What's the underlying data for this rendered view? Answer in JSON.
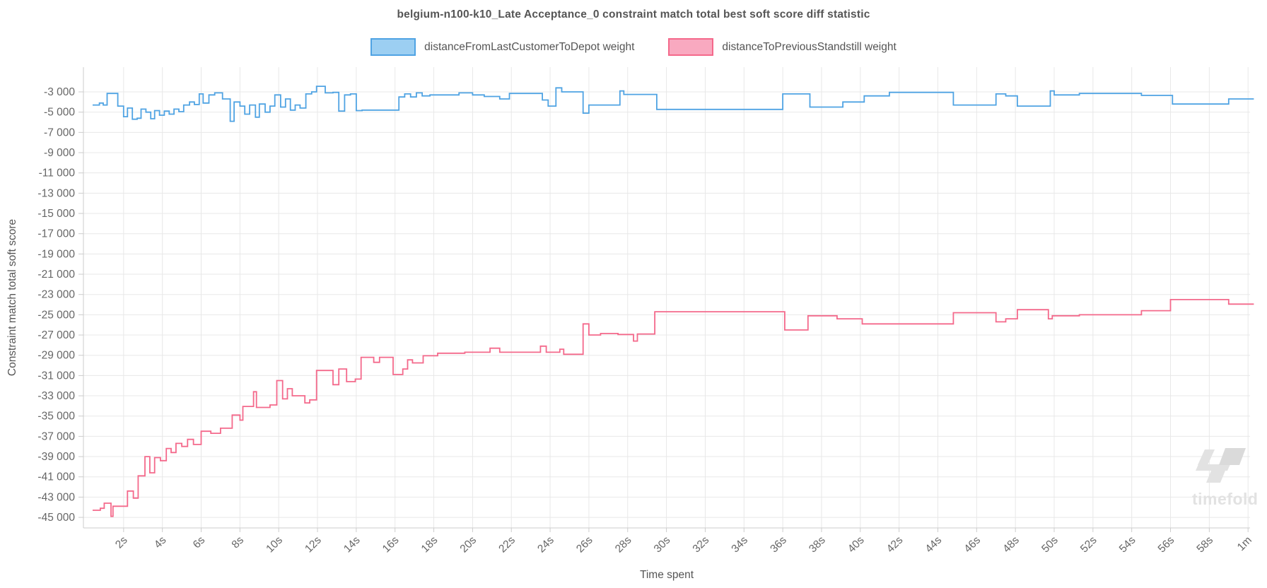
{
  "watermark": {
    "text": "timefold"
  },
  "colors": {
    "grid": "#e8e8e8",
    "axis": "#cccccc",
    "tick_text": "#666666",
    "title_text": "#555555",
    "watermark": "#e2e2e2",
    "watermark_dark": "#dadada"
  },
  "chart_data": {
    "type": "step-line",
    "title": "belgium-n100-k10_Late Acceptance_0 constraint match total best soft score diff statistic",
    "xlabel": "Time spent",
    "ylabel": "Constraint match total soft score",
    "x_unit": "seconds",
    "x_range": [
      0,
      60.5
    ],
    "y_range": [
      -46000,
      -1800
    ],
    "grid": true,
    "legend_position": "top-center",
    "x_ticks": [
      {
        "sec": 2,
        "label": "2s"
      },
      {
        "sec": 4,
        "label": "4s"
      },
      {
        "sec": 6,
        "label": "6s"
      },
      {
        "sec": 8,
        "label": "8s"
      },
      {
        "sec": 10,
        "label": "10s"
      },
      {
        "sec": 12,
        "label": "12s"
      },
      {
        "sec": 14,
        "label": "14s"
      },
      {
        "sec": 16,
        "label": "16s"
      },
      {
        "sec": 18,
        "label": "18s"
      },
      {
        "sec": 20,
        "label": "20s"
      },
      {
        "sec": 22,
        "label": "22s"
      },
      {
        "sec": 24,
        "label": "24s"
      },
      {
        "sec": 26,
        "label": "26s"
      },
      {
        "sec": 28,
        "label": "28s"
      },
      {
        "sec": 30,
        "label": "30s"
      },
      {
        "sec": 32,
        "label": "32s"
      },
      {
        "sec": 34,
        "label": "34s"
      },
      {
        "sec": 36,
        "label": "36s"
      },
      {
        "sec": 38,
        "label": "38s"
      },
      {
        "sec": 40,
        "label": "40s"
      },
      {
        "sec": 42,
        "label": "42s"
      },
      {
        "sec": 44,
        "label": "44s"
      },
      {
        "sec": 46,
        "label": "46s"
      },
      {
        "sec": 48,
        "label": "48s"
      },
      {
        "sec": 50,
        "label": "50s"
      },
      {
        "sec": 52,
        "label": "52s"
      },
      {
        "sec": 54,
        "label": "54s"
      },
      {
        "sec": 56,
        "label": "56s"
      },
      {
        "sec": 58,
        "label": "58s"
      },
      {
        "sec": 60,
        "label": "1m"
      }
    ],
    "y_ticks": [
      {
        "value": -3000,
        "label": "-3 000"
      },
      {
        "value": -5000,
        "label": "-5 000"
      },
      {
        "value": -7000,
        "label": "-7 000"
      },
      {
        "value": -9000,
        "label": "-9 000"
      },
      {
        "value": -11000,
        "label": "-11 000"
      },
      {
        "value": -13000,
        "label": "-13 000"
      },
      {
        "value": -15000,
        "label": "-15 000"
      },
      {
        "value": -17000,
        "label": "-17 000"
      },
      {
        "value": -19000,
        "label": "-19 000"
      },
      {
        "value": -21000,
        "label": "-21 000"
      },
      {
        "value": -23000,
        "label": "-23 000"
      },
      {
        "value": -25000,
        "label": "-25 000"
      },
      {
        "value": -27000,
        "label": "-27 000"
      },
      {
        "value": -29000,
        "label": "-29 000"
      },
      {
        "value": -31000,
        "label": "-31 000"
      },
      {
        "value": -33000,
        "label": "-33 000"
      },
      {
        "value": -35000,
        "label": "-35 000"
      },
      {
        "value": -37000,
        "label": "-37 000"
      },
      {
        "value": -39000,
        "label": "-39 000"
      },
      {
        "value": -41000,
        "label": "-41 000"
      },
      {
        "value": -43000,
        "label": "-43 000"
      },
      {
        "value": -45000,
        "label": "-45 000"
      }
    ],
    "series": [
      {
        "name": "distanceFromLastCustomerToDepot weight",
        "line_color": "#4fa3e3",
        "legend_fill": "#9ccff2",
        "points": [
          [
            0.4,
            -4300
          ],
          [
            0.75,
            -4100
          ],
          [
            0.95,
            -4300
          ],
          [
            1.15,
            -3150
          ],
          [
            1.7,
            -4400
          ],
          [
            2.0,
            -5450
          ],
          [
            2.2,
            -4600
          ],
          [
            2.45,
            -5700
          ],
          [
            2.7,
            -5600
          ],
          [
            2.9,
            -4700
          ],
          [
            3.15,
            -5000
          ],
          [
            3.4,
            -5650
          ],
          [
            3.6,
            -4850
          ],
          [
            3.85,
            -5300
          ],
          [
            4.1,
            -4900
          ],
          [
            4.35,
            -5200
          ],
          [
            4.6,
            -4700
          ],
          [
            4.85,
            -4950
          ],
          [
            5.1,
            -4300
          ],
          [
            5.4,
            -4000
          ],
          [
            5.65,
            -4250
          ],
          [
            5.9,
            -3200
          ],
          [
            6.1,
            -4100
          ],
          [
            6.4,
            -3300
          ],
          [
            6.7,
            -3100
          ],
          [
            7.1,
            -3700
          ],
          [
            7.5,
            -5900
          ],
          [
            7.7,
            -4000
          ],
          [
            8.0,
            -4400
          ],
          [
            8.25,
            -5200
          ],
          [
            8.5,
            -4300
          ],
          [
            8.8,
            -5500
          ],
          [
            9.0,
            -4200
          ],
          [
            9.3,
            -5000
          ],
          [
            9.55,
            -4400
          ],
          [
            9.8,
            -3300
          ],
          [
            10.1,
            -4500
          ],
          [
            10.35,
            -3700
          ],
          [
            10.6,
            -4800
          ],
          [
            10.85,
            -4300
          ],
          [
            11.1,
            -4600
          ],
          [
            11.4,
            -3200
          ],
          [
            11.7,
            -3000
          ],
          [
            11.95,
            -2450
          ],
          [
            12.4,
            -3100
          ],
          [
            12.8,
            -3050
          ],
          [
            13.1,
            -4900
          ],
          [
            13.4,
            -3300
          ],
          [
            13.7,
            -3200
          ],
          [
            14.0,
            -4850
          ],
          [
            14.3,
            -4800
          ],
          [
            16.2,
            -3500
          ],
          [
            16.5,
            -3200
          ],
          [
            16.8,
            -3500
          ],
          [
            17.1,
            -3100
          ],
          [
            17.4,
            -3400
          ],
          [
            17.8,
            -3300
          ],
          [
            19.3,
            -3100
          ],
          [
            20.0,
            -3300
          ],
          [
            20.6,
            -3450
          ],
          [
            21.4,
            -3700
          ],
          [
            21.9,
            -3150
          ],
          [
            23.6,
            -3800
          ],
          [
            23.9,
            -4400
          ],
          [
            24.3,
            -2600
          ],
          [
            24.6,
            -3000
          ],
          [
            25.7,
            -5100
          ],
          [
            26.0,
            -4300
          ],
          [
            27.6,
            -2900
          ],
          [
            27.8,
            -3250
          ],
          [
            29.5,
            -4730
          ],
          [
            36.0,
            -3200
          ],
          [
            37.4,
            -4500
          ],
          [
            39.1,
            -4000
          ],
          [
            40.2,
            -3400
          ],
          [
            41.5,
            -3050
          ],
          [
            44.8,
            -4300
          ],
          [
            47.0,
            -3200
          ],
          [
            47.5,
            -3400
          ],
          [
            48.1,
            -4400
          ],
          [
            49.8,
            -2900
          ],
          [
            50.0,
            -3300
          ],
          [
            51.3,
            -3150
          ],
          [
            54.5,
            -3350
          ],
          [
            56.1,
            -4200
          ],
          [
            59.0,
            -3700
          ],
          [
            60.3,
            -3700
          ]
        ]
      },
      {
        "name": "distanceToPreviousStandstill weight",
        "line_color": "#f4698b",
        "legend_fill": "#f9a9c0",
        "points": [
          [
            0.4,
            -44300
          ],
          [
            0.8,
            -44100
          ],
          [
            1.0,
            -43600
          ],
          [
            1.35,
            -44900
          ],
          [
            1.45,
            -43900
          ],
          [
            2.2,
            -42400
          ],
          [
            2.5,
            -43100
          ],
          [
            2.75,
            -40900
          ],
          [
            3.1,
            -39000
          ],
          [
            3.35,
            -40600
          ],
          [
            3.6,
            -39100
          ],
          [
            3.9,
            -39400
          ],
          [
            4.2,
            -38200
          ],
          [
            4.45,
            -38600
          ],
          [
            4.7,
            -37700
          ],
          [
            5.0,
            -38000
          ],
          [
            5.3,
            -37300
          ],
          [
            5.6,
            -37800
          ],
          [
            6.0,
            -36500
          ],
          [
            6.5,
            -36700
          ],
          [
            7.0,
            -36200
          ],
          [
            7.6,
            -34900
          ],
          [
            8.0,
            -35400
          ],
          [
            8.15,
            -34050
          ],
          [
            8.7,
            -32600
          ],
          [
            8.85,
            -34150
          ],
          [
            9.55,
            -33900
          ],
          [
            9.9,
            -31500
          ],
          [
            10.2,
            -33300
          ],
          [
            10.45,
            -32300
          ],
          [
            10.7,
            -33000
          ],
          [
            11.35,
            -33700
          ],
          [
            11.6,
            -33400
          ],
          [
            11.95,
            -30500
          ],
          [
            12.8,
            -31900
          ],
          [
            13.1,
            -30350
          ],
          [
            13.5,
            -31600
          ],
          [
            13.95,
            -31350
          ],
          [
            14.25,
            -29200
          ],
          [
            14.9,
            -29700
          ],
          [
            15.2,
            -29200
          ],
          [
            15.9,
            -30900
          ],
          [
            16.4,
            -30350
          ],
          [
            16.65,
            -29450
          ],
          [
            16.9,
            -29750
          ],
          [
            17.45,
            -29050
          ],
          [
            18.2,
            -28800
          ],
          [
            19.6,
            -28700
          ],
          [
            20.9,
            -28300
          ],
          [
            21.4,
            -28700
          ],
          [
            23.5,
            -28100
          ],
          [
            23.8,
            -28700
          ],
          [
            24.5,
            -28400
          ],
          [
            24.7,
            -28900
          ],
          [
            25.7,
            -25900
          ],
          [
            26.0,
            -27000
          ],
          [
            26.6,
            -26850
          ],
          [
            27.5,
            -26950
          ],
          [
            28.3,
            -27600
          ],
          [
            28.5,
            -26900
          ],
          [
            29.4,
            -24700
          ],
          [
            36.1,
            -26500
          ],
          [
            37.3,
            -25100
          ],
          [
            38.8,
            -25400
          ],
          [
            40.1,
            -25900
          ],
          [
            44.8,
            -24800
          ],
          [
            47.0,
            -25700
          ],
          [
            47.5,
            -25400
          ],
          [
            48.1,
            -24500
          ],
          [
            49.7,
            -25400
          ],
          [
            49.9,
            -25100
          ],
          [
            51.3,
            -25000
          ],
          [
            54.5,
            -24600
          ],
          [
            56.0,
            -23500
          ],
          [
            59.0,
            -23950
          ],
          [
            60.3,
            -23950
          ]
        ]
      }
    ]
  }
}
